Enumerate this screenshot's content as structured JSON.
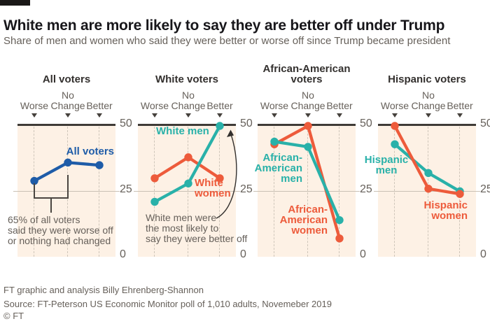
{
  "header": {
    "title": "White men are more likely to say they are better off under Trump",
    "subtitle": "Share of men and women who said they were better or worse off since Trump became president"
  },
  "chart_data": {
    "type": "line",
    "colors": {
      "blue": "#1e5ca8",
      "teal": "#29b1a9",
      "orange": "#ed5b3b",
      "cream_background": "#fdf1e5",
      "axis_dark": "#3f3b37",
      "text_gray": "#66605a"
    },
    "axis": {
      "cat_lines": [
        [
          "Worse"
        ],
        [
          "No",
          "Change"
        ],
        [
          "Better"
        ]
      ],
      "categories": [
        "Worse",
        "No Change",
        "Better"
      ],
      "tick_labels": [
        "50",
        "25",
        "0"
      ],
      "ylim": [
        0,
        50
      ],
      "grid": "dashed-vertical"
    },
    "panels": [
      {
        "title_lines": [
          "All voters"
        ],
        "series": [
          {
            "name": "All voters",
            "color": "blue",
            "values": [
              29,
              36,
              35
            ],
            "label_lines": [
              "All voters"
            ]
          }
        ],
        "annotation_lines": [
          "65% of all voters",
          "said they were worse off",
          "or nothing had changed"
        ]
      },
      {
        "title_lines": [
          "White voters"
        ],
        "series": [
          {
            "name": "White women",
            "color": "orange",
            "values": [
              30,
              38,
              30
            ],
            "label_lines": [
              "White",
              "women"
            ]
          },
          {
            "name": "White men",
            "color": "teal",
            "values": [
              21,
              28,
              50
            ],
            "label_lines": [
              "White men"
            ]
          }
        ],
        "annotation_lines": [
          "White men were",
          "the most likely to",
          "say they were better off"
        ]
      },
      {
        "title_lines": [
          "African-American",
          "voters"
        ],
        "series": [
          {
            "name": "African-American women",
            "color": "orange",
            "values": [
              43,
              50,
              7
            ],
            "label_lines": [
              "African-",
              "American",
              "women"
            ]
          },
          {
            "name": "African-American men",
            "color": "teal",
            "values": [
              44,
              42,
              14
            ],
            "label_lines": [
              "African-",
              "American",
              "men"
            ]
          }
        ]
      },
      {
        "title_lines": [
          "Hispanic voters"
        ],
        "series": [
          {
            "name": "Hispanic men",
            "color": "teal",
            "values": [
              43,
              32,
              25
            ],
            "label_lines": [
              "Hispanic",
              "men"
            ]
          },
          {
            "name": "Hispanic women",
            "color": "orange",
            "values": [
              50,
              26,
              24
            ],
            "label_lines": [
              "Hispanic",
              "women"
            ]
          }
        ]
      }
    ]
  },
  "footer": {
    "credit": "FT graphic and analysis Billy Ehrenberg-Shannon",
    "source": "Source: FT-Peterson US Economic Monitor poll of 1,010 adults, Novemeber 2019",
    "copyright": "© FT"
  }
}
